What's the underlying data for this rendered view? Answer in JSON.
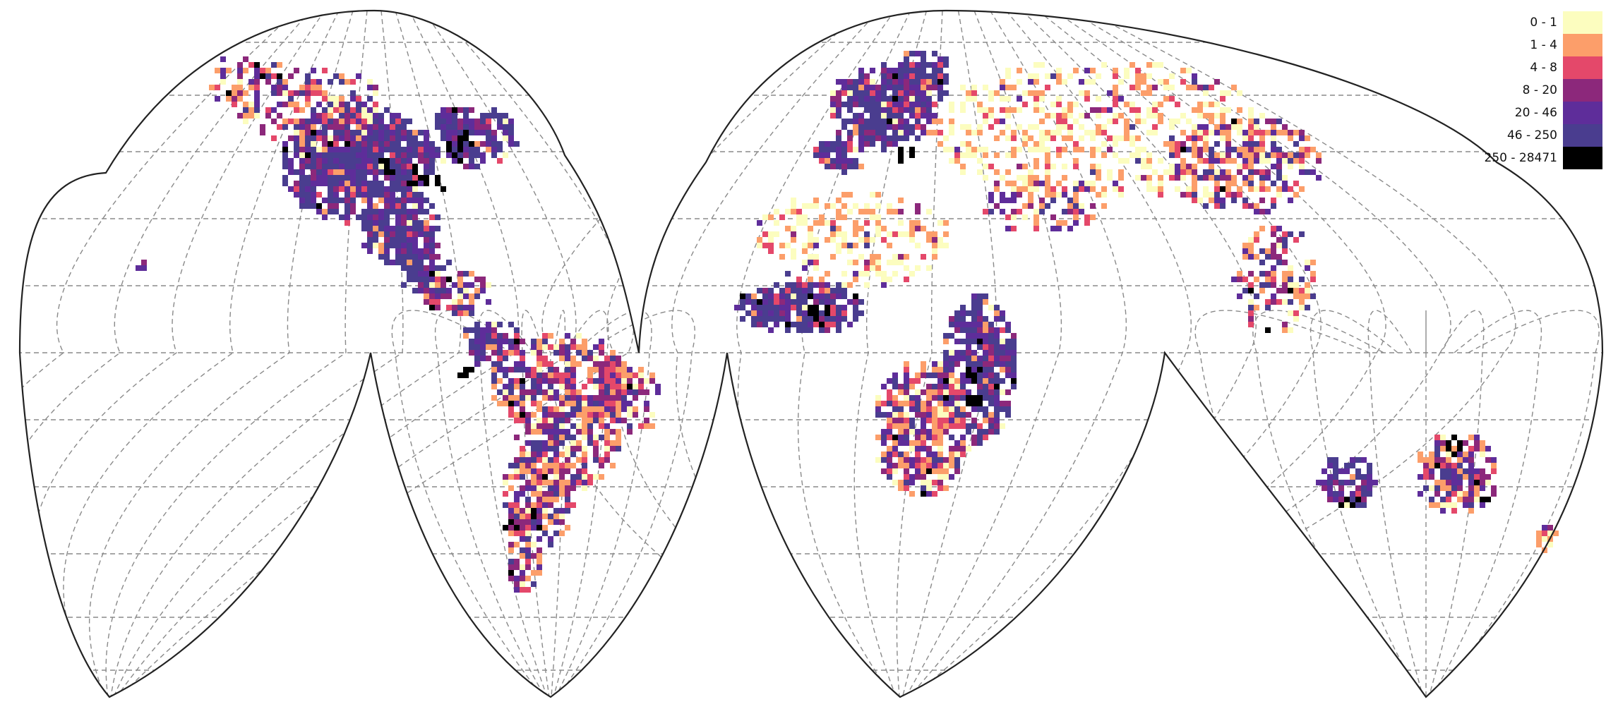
{
  "map": {
    "projection": "interrupted-goode-homolosine",
    "graticule": "dashed",
    "outline_color": "#222222",
    "graticule_color": "#8a8a8a"
  },
  "legend": {
    "placement": "top-right",
    "bins": [
      {
        "label": "0 - 1",
        "color": "#fcfdbf"
      },
      {
        "label": "1 - 4",
        "color": "#fc9e6a"
      },
      {
        "label": "4 - 8",
        "color": "#e4486a"
      },
      {
        "label": "8 - 20",
        "color": "#8c287b"
      },
      {
        "label": "20 - 46",
        "color": "#5e2d9a"
      },
      {
        "label": "46 - 250",
        "color": "#4a3d8f"
      },
      {
        "label": "250 - 28471",
        "color": "#000000"
      }
    ]
  },
  "regions": [
    {
      "name": "north-america",
      "dominant_bin": 5
    },
    {
      "name": "central-america",
      "dominant_bin": 4
    },
    {
      "name": "south-america",
      "dominant_bin": 1
    },
    {
      "name": "europe",
      "dominant_bin": 5
    },
    {
      "name": "north-africa-sahara",
      "dominant_bin": 0
    },
    {
      "name": "west-africa",
      "dominant_bin": 4
    },
    {
      "name": "east-africa",
      "dominant_bin": 5
    },
    {
      "name": "southern-africa",
      "dominant_bin": 3
    },
    {
      "name": "russia-central-asia",
      "dominant_bin": 1
    },
    {
      "name": "south-east-asia",
      "dominant_bin": 2
    },
    {
      "name": "australia",
      "dominant_bin": 1
    },
    {
      "name": "western-australia",
      "dominant_bin": 4
    },
    {
      "name": "eastern-australia",
      "dominant_bin": 3
    },
    {
      "name": "hawaii",
      "dominant_bin": 3
    },
    {
      "name": "new-zealand",
      "dominant_bin": 1
    }
  ]
}
